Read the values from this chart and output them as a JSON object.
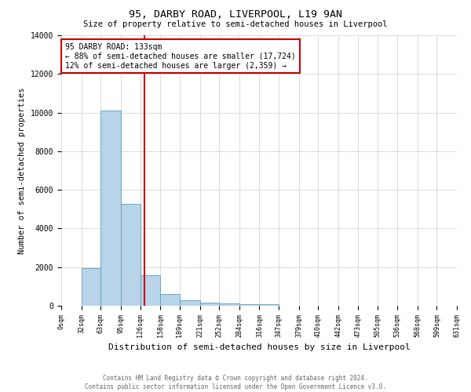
{
  "title": "95, DARBY ROAD, LIVERPOOL, L19 9AN",
  "subtitle": "Size of property relative to semi-detached houses in Liverpool",
  "xlabel": "Distribution of semi-detached houses by size in Liverpool",
  "ylabel": "Number of semi-detached properties",
  "footnote": "Contains HM Land Registry data © Crown copyright and database right 2024.\nContains public sector information licensed under the Open Government Licence v3.0.",
  "bin_edges": [
    0,
    32,
    63,
    95,
    126,
    158,
    189,
    221,
    252,
    284,
    316,
    347,
    379,
    410,
    442,
    473,
    505,
    536,
    568,
    599,
    631
  ],
  "bar_heights": [
    0,
    1950,
    10100,
    5280,
    1580,
    590,
    270,
    150,
    120,
    95,
    75,
    0,
    0,
    0,
    0,
    0,
    0,
    0,
    0,
    0
  ],
  "bar_color": "#b8d4e8",
  "bar_edge_color": "#5a9ec0",
  "property_value": 133,
  "vline_color": "#cc0000",
  "annotation_text": "95 DARBY ROAD: 133sqm\n← 88% of semi-detached houses are smaller (17,724)\n12% of semi-detached houses are larger (2,359) →",
  "annotation_box_color": "#ffffff",
  "annotation_box_edge": "#cc0000",
  "ylim": [
    0,
    14000
  ],
  "xlim": [
    0,
    631
  ],
  "yticks": [
    0,
    2000,
    4000,
    6000,
    8000,
    10000,
    12000,
    14000
  ],
  "background_color": "#ffffff",
  "grid_color": "#cccccc"
}
